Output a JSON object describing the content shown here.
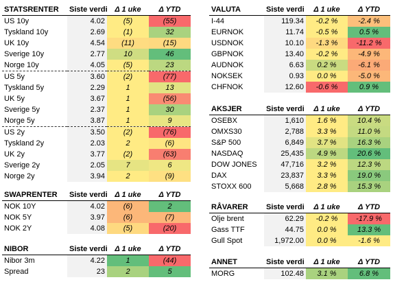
{
  "statsrenter": {
    "headers": [
      "STATSRENTER",
      "Siste verdi",
      "Δ 1 uke",
      "Δ YTD"
    ],
    "rows": [
      {
        "name": "US 10y",
        "value": "4.02",
        "d1": "(5)",
        "dy": "(55)",
        "c1": "#ffeb84",
        "cy": "#f8696b"
      },
      {
        "name": "Tyskland 10y",
        "value": "2.69",
        "d1": "(1)",
        "dy": "32",
        "c1": "#ffeb84",
        "cy": "#a9d27f"
      },
      {
        "name": "UK 10y",
        "value": "4.54",
        "d1": "(11)",
        "dy": "(15)",
        "c1": "#fedc81",
        "cy": "#fed980"
      },
      {
        "name": "Sverige 10y",
        "value": "2.77",
        "d1": "10",
        "dy": "46",
        "c1": "#cfdd82",
        "cy": "#63be7b"
      },
      {
        "name": "Norge 10y",
        "value": "4.05",
        "d1": "(5)",
        "dy": "23",
        "c1": "#ffeb84",
        "cy": "#bcd881"
      },
      {
        "name": "US 5y",
        "value": "3.60",
        "d1": "(2)",
        "dy": "(77)",
        "c1": "#ffeb84",
        "cy": "#f8696b"
      },
      {
        "name": "Tyskland 5y",
        "value": "2.29",
        "d1": "1",
        "dy": "13",
        "c1": "#ffeb84",
        "cy": "#e1e383"
      },
      {
        "name": "UK 5y",
        "value": "3.67",
        "d1": "1",
        "dy": "(56)",
        "c1": "#ffeb84",
        "cy": "#f98b73"
      },
      {
        "name": "Sverige 5y",
        "value": "2.37",
        "d1": "1",
        "dy": "30",
        "c1": "#ffeb84",
        "cy": "#a9d27f"
      },
      {
        "name": "Norge 5y",
        "value": "3.87",
        "d1": "1",
        "dy": "9",
        "c1": "#ffeb84",
        "cy": "#e8e583"
      },
      {
        "name": "US 2y",
        "value": "3.50",
        "d1": "(2)",
        "dy": "(76)",
        "c1": "#ffeb84",
        "cy": "#f8696b"
      },
      {
        "name": "Tyskland 2y",
        "value": "2.03",
        "d1": "2",
        "dy": "(6)",
        "c1": "#ffeb84",
        "cy": "#fee582"
      },
      {
        "name": "UK 2y",
        "value": "3.77",
        "d1": "(2)",
        "dy": "(63)",
        "c1": "#ffeb84",
        "cy": "#f87e70"
      },
      {
        "name": "Sverige 2y",
        "value": "2.05",
        "d1": "7",
        "dy": "6",
        "c1": "#e6e483",
        "cy": "#efe784"
      },
      {
        "name": "Norge 2y",
        "value": "3.94",
        "d1": "2",
        "dy": "(9)",
        "c1": "#ffeb84",
        "cy": "#fee082"
      }
    ]
  },
  "swaprenter": {
    "headers": [
      "SWAPRENTER",
      "Siste verdi",
      "Δ 1 uke",
      "Δ YTD"
    ],
    "rows": [
      {
        "name": "NOK 10Y",
        "value": "4.02",
        "d1": "(6)",
        "dy": "2",
        "c1": "#fcb779",
        "cy": "#63be7b"
      },
      {
        "name": "NOK 5Y",
        "value": "3.97",
        "d1": "(6)",
        "dy": "(7)",
        "c1": "#fcb779",
        "cy": "#fcb779"
      },
      {
        "name": "NOK 2Y",
        "value": "4.08",
        "d1": "(5)",
        "dy": "(20)",
        "c1": "#fed980",
        "cy": "#f8696b"
      }
    ]
  },
  "nibor": {
    "headers": [
      "NIBOR",
      "Siste verdi",
      "Δ 1 uke",
      "Δ YTD"
    ],
    "rows": [
      {
        "name": "Nibor 3m",
        "value": "4.22",
        "d1": "1",
        "dy": "(44)",
        "c1": "#63be7b",
        "cy": "#f8696b"
      },
      {
        "name": "Spread",
        "value": "23",
        "d1": "2",
        "dy": "5",
        "c1": "#a9d27f",
        "cy": "#63be7b"
      }
    ]
  },
  "valuta": {
    "headers": [
      "VALUTA",
      "Siste verdi",
      "Δ 1 uke",
      "Δ YTD"
    ],
    "rows": [
      {
        "name": "I-44",
        "value": "119.34",
        "d1": "-0.2 %",
        "dy": "-2.4 %",
        "c1": "#ffeb84",
        "cy": "#fcbf7b"
      },
      {
        "name": "EURNOK",
        "value": "11.74",
        "d1": "-0.5 %",
        "dy": "0.5 %",
        "c1": "#ffeb84",
        "cy": "#63be7b"
      },
      {
        "name": "USDNOK",
        "value": "10.10",
        "d1": "-1.3 %",
        "dy": "-11.2 %",
        "c1": "#fed980",
        "cy": "#f8696b"
      },
      {
        "name": "GBPNOK",
        "value": "13.40",
        "d1": "-0.2 %",
        "dy": "-4.9 %",
        "c1": "#ffeb84",
        "cy": "#fcb779"
      },
      {
        "name": "AUDNOK",
        "value": "6.63",
        "d1": "0.2 %",
        "dy": "-6.1 %",
        "c1": "#c9db81",
        "cy": "#fbaa77"
      },
      {
        "name": "NOKSEK",
        "value": "0.93",
        "d1": "0.0 %",
        "dy": "-5.0 %",
        "c1": "#ffeb84",
        "cy": "#fcb779"
      },
      {
        "name": "CHFNOK",
        "value": "12.60",
        "d1": "-0.6 %",
        "dy": "0.9 %",
        "c1": "#f8696b",
        "cy": "#63be7b"
      }
    ]
  },
  "aksjer": {
    "headers": [
      "AKSJER",
      "Siste verdi",
      "Δ 1 uke",
      "Δ YTD"
    ],
    "rows": [
      {
        "name": "OSEBX",
        "value": "1,610",
        "d1": "1.6 %",
        "dy": "10.4 %",
        "c1": "#ffeb84",
        "cy": "#c9db81"
      },
      {
        "name": "OMXS30",
        "value": "2,788",
        "d1": "3.3 %",
        "dy": "11.0 %",
        "c1": "#ffeb84",
        "cy": "#c4da81"
      },
      {
        "name": "S&P 500",
        "value": "6,849",
        "d1": "3.7 %",
        "dy": "16.3 %",
        "c1": "#e1e383",
        "cy": "#a9d27f"
      },
      {
        "name": "NASDAQ",
        "value": "25,435",
        "d1": "4.9 %",
        "dy": "20.6 %",
        "c1": "#bcd881",
        "cy": "#63be7b"
      },
      {
        "name": "DOW JONES",
        "value": "47,716",
        "d1": "3.2 %",
        "dy": "12.3 %",
        "c1": "#ffeb84",
        "cy": "#bcd881"
      },
      {
        "name": "DAX",
        "value": "23,837",
        "d1": "3.3 %",
        "dy": "19.0 %",
        "c1": "#ffeb84",
        "cy": "#8ac97d"
      },
      {
        "name": "STOXX 600",
        "value": "5,668",
        "d1": "2.8 %",
        "dy": "15.3 %",
        "c1": "#ffeb84",
        "cy": "#a9d27f"
      }
    ]
  },
  "ravarer": {
    "headers": [
      "RÅVARER",
      "Siste verdi",
      "Δ 1 uke",
      "Δ YTD"
    ],
    "rows": [
      {
        "name": "Olje brent",
        "value": "62.29",
        "d1": "-0.2 %",
        "dy": "-17.9 %",
        "c1": "#ffeb84",
        "cy": "#f8696b"
      },
      {
        "name": "Gass TTF",
        "value": "44.75",
        "d1": "0.0 %",
        "dy": "13.3 %",
        "c1": "#ffeb84",
        "cy": "#63be7b"
      },
      {
        "name": "Gull Spot",
        "value": "1,972.00",
        "d1": "0.0 %",
        "dy": "-1.6 %",
        "c1": "#ffeb84",
        "cy": "#ffeb84"
      }
    ]
  },
  "annet": {
    "headers": [
      "ANNET",
      "Siste verdi",
      "Δ 1 uke",
      "Δ YTD"
    ],
    "rows": [
      {
        "name": "MORG",
        "value": "102.48",
        "d1": "3.1 %",
        "dy": "6.8 %",
        "c1": "#a9d27f",
        "cy": "#63be7b"
      }
    ]
  }
}
